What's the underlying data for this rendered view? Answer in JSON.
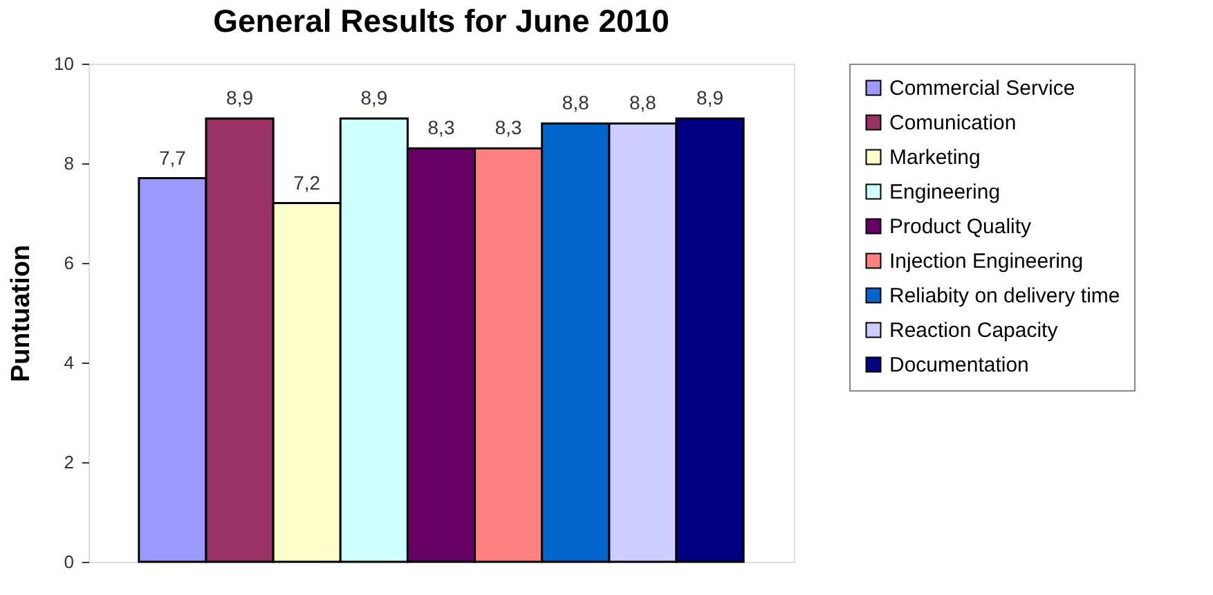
{
  "chart_data": {
    "type": "bar",
    "title": "General Results for June 2010",
    "ylabel": "Puntuation",
    "categories": [
      null
    ],
    "series": [
      {
        "name": "Commercial Service",
        "color": "#9999ff",
        "values": [
          7.7
        ],
        "value_labels": [
          "7,7"
        ]
      },
      {
        "name": "Comunication",
        "color": "#993366",
        "values": [
          8.9
        ],
        "value_labels": [
          "8,9"
        ]
      },
      {
        "name": "Marketing",
        "color": "#ffffcc",
        "values": [
          7.2
        ],
        "value_labels": [
          "7,2"
        ]
      },
      {
        "name": "Engineering",
        "color": "#ccffff",
        "values": [
          8.9
        ],
        "value_labels": [
          "8,9"
        ]
      },
      {
        "name": "Product Quality",
        "color": "#660066",
        "values": [
          8.3
        ],
        "value_labels": [
          "8,3"
        ]
      },
      {
        "name": "Injection Engineering",
        "color": "#ff8080",
        "values": [
          8.3
        ],
        "value_labels": [
          "8,3"
        ]
      },
      {
        "name": "Reliabity on delivery time",
        "color": "#0066cc",
        "values": [
          8.8
        ],
        "value_labels": [
          "8,8"
        ]
      },
      {
        "name": "Reaction Capacity",
        "color": "#ccccff",
        "values": [
          8.8
        ],
        "value_labels": [
          "8,8"
        ]
      },
      {
        "name": "Documentation",
        "color": "#000080",
        "values": [
          8.9
        ],
        "value_labels": [
          "8,9"
        ]
      }
    ],
    "ylim": [
      0,
      10
    ],
    "yticks": [
      0,
      2,
      4,
      6,
      8,
      10
    ],
    "grid": false,
    "legend": "right"
  }
}
